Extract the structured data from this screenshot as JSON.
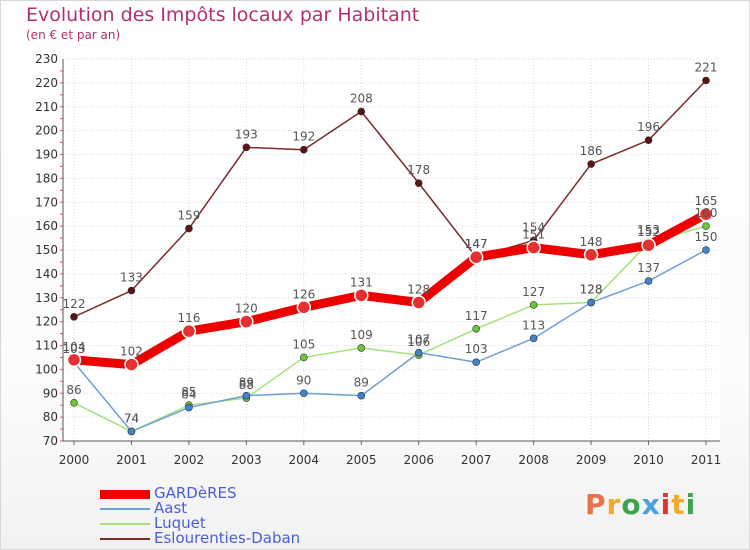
{
  "header": {
    "title": "Evolution des Impôts locaux par Habitant",
    "subtitle": "(en € et par an)"
  },
  "logo": {
    "text": "Proxiti",
    "colors": [
      "#e8734a",
      "#f3a92c",
      "#3aa54a",
      "#4aa3df",
      "#e5322d",
      "#f3a92c",
      "#3aa54a"
    ]
  },
  "chart_data": {
    "type": "line",
    "title": "Evolution des Impôts locaux par Habitant",
    "subtitle": "(en € et par an)",
    "xlabel": "",
    "ylabel": "",
    "categories": [
      "2000",
      "2001",
      "2002",
      "2003",
      "2004",
      "2005",
      "2006",
      "2007",
      "2008",
      "2009",
      "2010",
      "2011"
    ],
    "ylim": [
      70,
      230
    ],
    "yticks": [
      70,
      80,
      90,
      100,
      110,
      120,
      130,
      140,
      150,
      160,
      170,
      180,
      190,
      200,
      210,
      220,
      230
    ],
    "grid": true,
    "legend_position": "bottom-left",
    "series": [
      {
        "name": "GARDèRES",
        "color": "#ee0000",
        "marker": "#e53030",
        "values": [
          104,
          102,
          116,
          120,
          126,
          131,
          128,
          147,
          151,
          148,
          152,
          165
        ]
      },
      {
        "name": "Aast",
        "color": "#6ea0d8",
        "marker": "#3f83c8",
        "values": [
          103,
          74,
          84,
          89,
          90,
          89,
          107,
          103,
          113,
          128,
          137,
          150
        ]
      },
      {
        "name": "Luquet",
        "color": "#a6e27a",
        "marker": "#6cc63a",
        "values": [
          86,
          74,
          85,
          88,
          105,
          109,
          106,
          117,
          127,
          128,
          153,
          160
        ]
      },
      {
        "name": "Eslourenties-Daban",
        "color": "#7a2a2a",
        "marker": "#5a1414",
        "values": [
          122,
          133,
          159,
          193,
          192,
          208,
          178,
          147,
          154,
          186,
          196,
          221
        ]
      }
    ]
  }
}
